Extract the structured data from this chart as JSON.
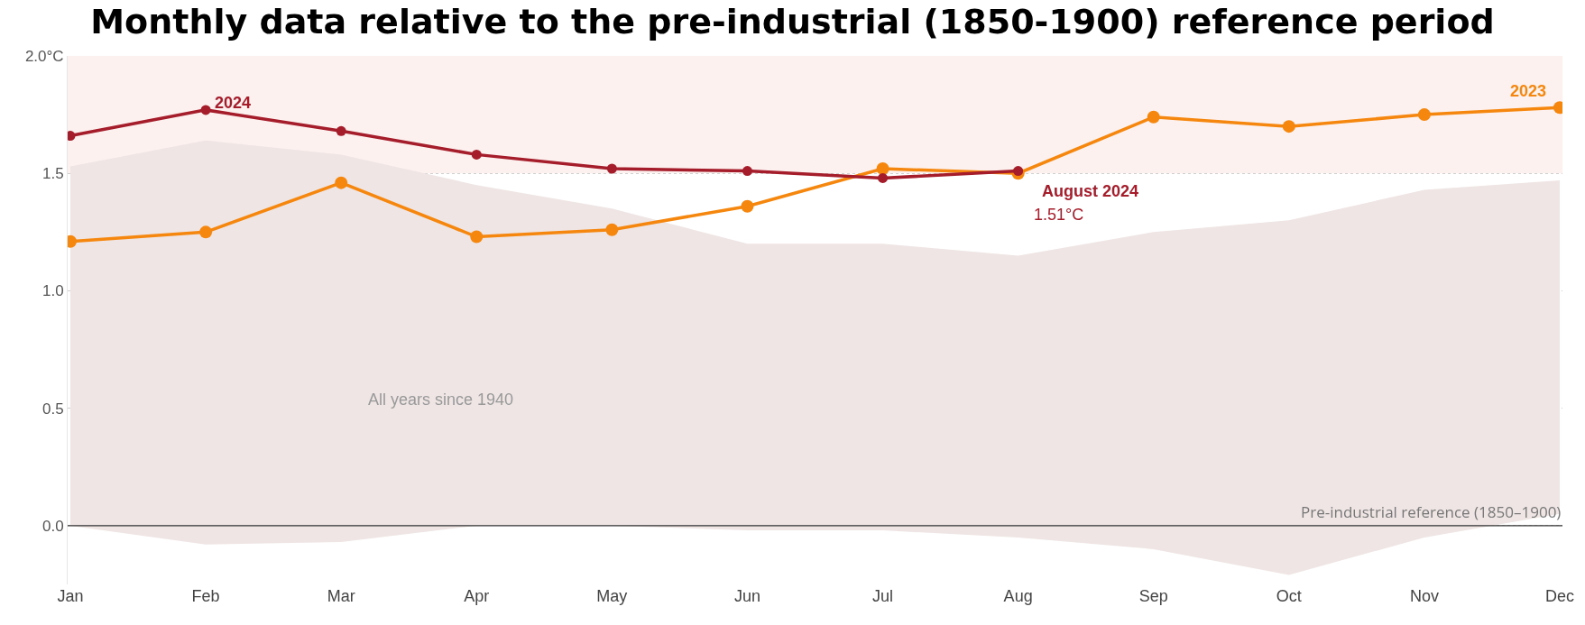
{
  "chart_data": {
    "type": "line",
    "title": "Monthly data relative to the pre-industrial (1850-1900) reference period",
    "categories": [
      "Jan",
      "Feb",
      "Mar",
      "Apr",
      "May",
      "Jun",
      "Jul",
      "Aug",
      "Sep",
      "Oct",
      "Nov",
      "Dec"
    ],
    "series": [
      {
        "color": "#efe5e5",
        "values": [
          null,
          null,
          null,
          null,
          null,
          null,
          null,
          null,
          null,
          null,
          null,
          null
        ],
        "lower": [
          0.0,
          -0.08,
          -0.07,
          0.0,
          0.0,
          -0.02,
          -0.02,
          -0.05,
          -0.1,
          -0.21,
          -0.05,
          0.05
        ],
        "upper": [
          1.53,
          1.64,
          1.58,
          1.45,
          1.35,
          1.2,
          1.2,
          1.15,
          1.25,
          1.3,
          1.43,
          1.47
        ]
      },
      {
        "color": "#f5870f",
        "values": [
          1.21,
          1.25,
          1.46,
          1.23,
          1.26,
          1.36,
          1.52,
          1.5,
          1.74,
          1.7,
          1.75,
          1.78
        ]
      },
      {
        "color": "#a51c2a",
        "values": [
          1.66,
          1.77,
          1.68,
          1.58,
          1.52,
          1.51,
          1.48,
          1.51,
          null,
          null,
          null,
          null
        ]
      }
    ],
    "ylim": [
      -0.25,
      2.0
    ],
    "yticks": [
      {
        "value": 0,
        "label": "0.0"
      },
      0.5,
      {
        "value": 1,
        "label": "1.0"
      },
      1.5,
      {
        "value": 2,
        "label": "2.0°C"
      }
    ],
    "grid": "y",
    "marker": "circle",
    "line_style": "solid",
    "bands": [
      {
        "axis": "y",
        "from": 1.5,
        "to": 2.0,
        "color": "#fdf1ef"
      }
    ],
    "ref_lines": [
      {
        "axis": "y",
        "value": 0,
        "label": "Pre-industrial reference (1850–1900)",
        "color": "#333333"
      }
    ],
    "annotations": [
      {
        "text": "2024",
        "x": "Feb",
        "y": 1.77
      },
      {
        "text": "2023",
        "x": "Dec",
        "y": 1.78
      },
      {
        "text": "August 2024",
        "x": "Aug",
        "y": 1.51
      },
      {
        "text": "1.51°C",
        "x": "Aug",
        "y": 1.51
      },
      "All years since 1940"
    ]
  }
}
